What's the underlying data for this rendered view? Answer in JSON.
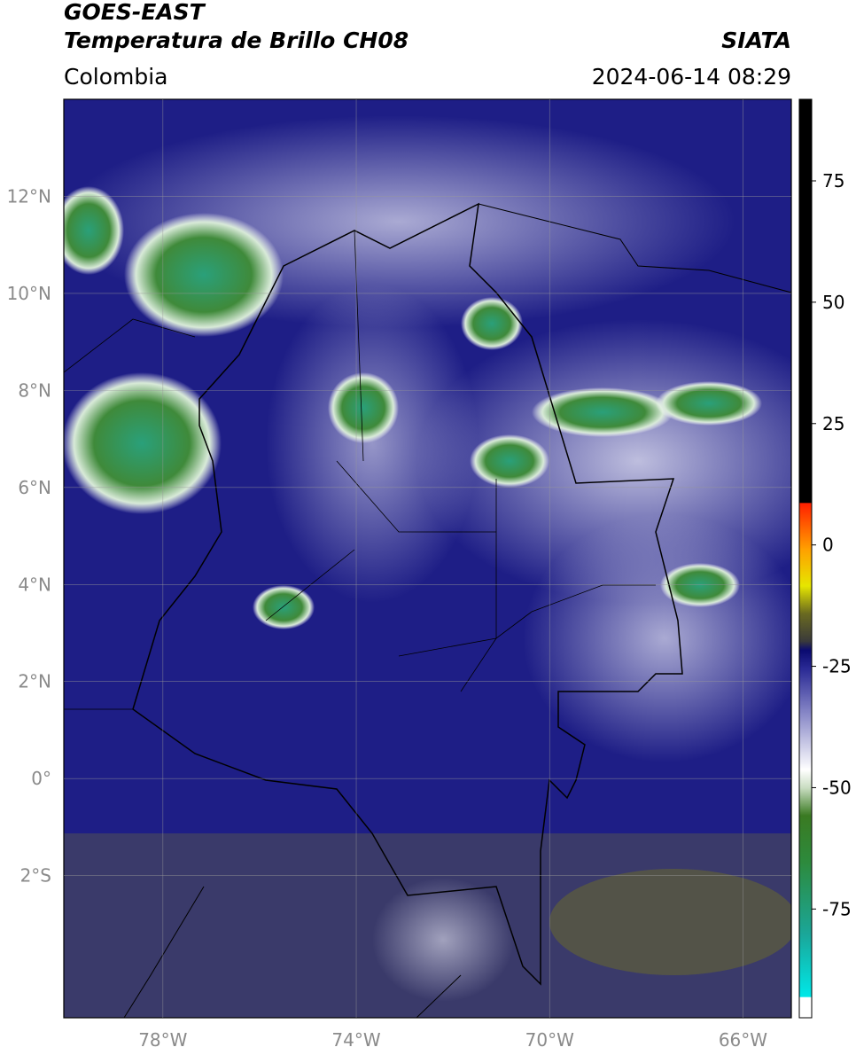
{
  "header": {
    "title": "GOES-EAST",
    "subtitle": "Temperatura de Brillo CH08",
    "source": "SIATA",
    "region": "Colombia",
    "datetime": "2024-06-14 08:29"
  },
  "map": {
    "xlim": [
      -80.05,
      -65.0
    ],
    "ylim": [
      -4.93,
      14.0
    ],
    "lon_ticks": [
      {
        "value": -78,
        "label": "78°W"
      },
      {
        "value": -74,
        "label": "74°W"
      },
      {
        "value": -70,
        "label": "70°W"
      },
      {
        "value": -66,
        "label": "66°W"
      }
    ],
    "lat_ticks": [
      {
        "value": 12,
        "label": "12°N"
      },
      {
        "value": 10,
        "label": "10°N"
      },
      {
        "value": 8,
        "label": "8°N"
      },
      {
        "value": 6,
        "label": "6°N"
      },
      {
        "value": 4,
        "label": "4°N"
      },
      {
        "value": 2,
        "label": "2°N"
      },
      {
        "value": 0,
        "label": "0°"
      },
      {
        "value": -2,
        "label": "2°S"
      }
    ]
  },
  "colorbar": {
    "lim": [
      -97.4,
      91.8
    ],
    "ticks": [
      75,
      50,
      25,
      0,
      -25,
      -50,
      -75
    ]
  }
}
